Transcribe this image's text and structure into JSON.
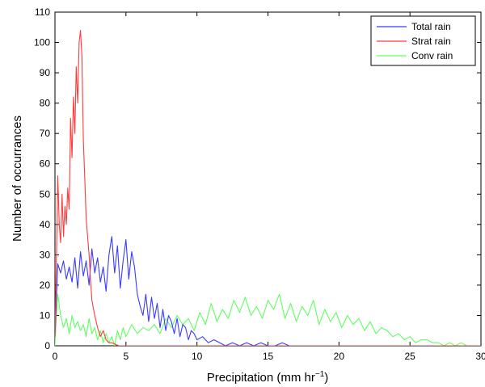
{
  "chart_data": {
    "type": "line",
    "title": "",
    "xlabel": "Precipitation (mm hr",
    "xlabel_sup": "−1",
    "xlabel_close": ")",
    "ylabel": "Number of occurrances",
    "xlim": [
      0,
      30
    ],
    "ylim": [
      0,
      110
    ],
    "xticks": [
      "0",
      "5",
      "10",
      "15",
      "20",
      "25",
      "30"
    ],
    "yticks": [
      "0",
      "10",
      "20",
      "30",
      "40",
      "50",
      "60",
      "70",
      "80",
      "90",
      "100",
      "110"
    ],
    "grid": false,
    "legend_position": "top-right",
    "series": [
      {
        "name": "Total rain",
        "color": "#3b3bff",
        "x": [
          0,
          0.2,
          0.4,
          0.6,
          0.8,
          1.0,
          1.2,
          1.4,
          1.6,
          1.8,
          2.0,
          2.2,
          2.4,
          2.6,
          2.8,
          3.0,
          3.2,
          3.4,
          3.6,
          3.8,
          4.0,
          4.2,
          4.4,
          4.6,
          4.8,
          5.0,
          5.2,
          5.4,
          5.6,
          5.8,
          6.0,
          6.2,
          6.4,
          6.6,
          6.8,
          7.0,
          7.2,
          7.4,
          7.6,
          7.8,
          8.0,
          8.2,
          8.4,
          8.6,
          8.8,
          9.0,
          9.2,
          9.4,
          9.6,
          9.8,
          10.0,
          10.4,
          10.8,
          11.2,
          11.6,
          12.0,
          12.5,
          13.0,
          13.5,
          14.0,
          14.5,
          15.0,
          15.5,
          16.0,
          16.5,
          17.0,
          18.0,
          20.0,
          25.0,
          30.0
        ],
        "y": [
          3,
          27,
          24,
          28,
          22,
          26,
          21,
          29,
          19,
          31,
          23,
          28,
          20,
          32,
          24,
          29,
          21,
          26,
          18,
          30,
          36,
          24,
          33,
          19,
          28,
          35,
          22,
          31,
          26,
          17,
          13,
          10,
          17,
          8,
          16,
          9,
          14,
          6,
          12,
          5,
          10,
          8,
          4,
          9,
          3,
          7,
          6,
          2,
          5,
          4,
          2,
          3,
          1,
          2,
          1,
          0,
          1,
          0,
          1,
          0,
          1,
          0,
          0,
          1,
          0,
          0,
          0,
          0,
          0,
          0
        ]
      },
      {
        "name": "Strat rain",
        "color": "#ff3b3b",
        "x": [
          0,
          0.1,
          0.2,
          0.3,
          0.4,
          0.5,
          0.6,
          0.7,
          0.8,
          0.9,
          1.0,
          1.1,
          1.2,
          1.3,
          1.4,
          1.5,
          1.6,
          1.7,
          1.8,
          1.9,
          2.0,
          2.1,
          2.2,
          2.3,
          2.4,
          2.5,
          2.6,
          2.8,
          3.0,
          3.2,
          3.4,
          3.6,
          3.8,
          4.0,
          4.5,
          5.0,
          6.0,
          30.0
        ],
        "y": [
          3,
          28,
          56,
          40,
          34,
          50,
          36,
          46,
          40,
          52,
          45,
          75,
          62,
          82,
          70,
          92,
          80,
          100,
          104,
          95,
          68,
          55,
          42,
          36,
          30,
          22,
          15,
          10,
          6,
          3,
          5,
          2,
          1,
          1,
          0,
          0,
          0,
          0
        ]
      },
      {
        "name": "Conv rain",
        "color": "#5fff5f",
        "x": [
          0,
          0.1,
          0.2,
          0.4,
          0.6,
          0.8,
          1.0,
          1.2,
          1.4,
          1.6,
          1.8,
          2.0,
          2.2,
          2.4,
          2.6,
          2.8,
          3.0,
          3.2,
          3.4,
          3.6,
          3.8,
          4.0,
          4.2,
          4.4,
          4.6,
          4.8,
          5.0,
          5.4,
          5.8,
          6.2,
          6.6,
          7.0,
          7.4,
          7.8,
          8.2,
          8.6,
          9.0,
          9.4,
          9.8,
          10.2,
          10.6,
          11.0,
          11.4,
          11.8,
          12.2,
          12.6,
          13.0,
          13.4,
          13.8,
          14.2,
          14.6,
          15.0,
          15.4,
          15.8,
          16.2,
          16.6,
          17.0,
          17.4,
          17.8,
          18.2,
          18.6,
          19.0,
          19.4,
          19.8,
          20.2,
          20.6,
          21.0,
          21.4,
          21.8,
          22.2,
          22.6,
          23.0,
          23.4,
          23.8,
          24.2,
          24.6,
          25.0,
          25.4,
          25.8,
          26.2,
          26.6,
          27.0,
          27.4,
          27.8,
          28.2,
          28.6,
          29.0,
          29.4,
          30.0
        ],
        "y": [
          0,
          10,
          17,
          10,
          6,
          9,
          4,
          10,
          6,
          8,
          5,
          7,
          3,
          9,
          4,
          6,
          2,
          5,
          1,
          4,
          1,
          3,
          0,
          5,
          2,
          6,
          3,
          7,
          4,
          6,
          5,
          7,
          4,
          9,
          6,
          10,
          7,
          9,
          5,
          11,
          7,
          14,
          8,
          12,
          9,
          15,
          11,
          16,
          10,
          13,
          9,
          15,
          12,
          17,
          9,
          14,
          8,
          13,
          10,
          15,
          7,
          12,
          8,
          11,
          6,
          10,
          7,
          9,
          5,
          8,
          4,
          6,
          5,
          3,
          4,
          2,
          3,
          1,
          2,
          2,
          1,
          1,
          0,
          1,
          0,
          1,
          0,
          0,
          0
        ]
      }
    ]
  }
}
